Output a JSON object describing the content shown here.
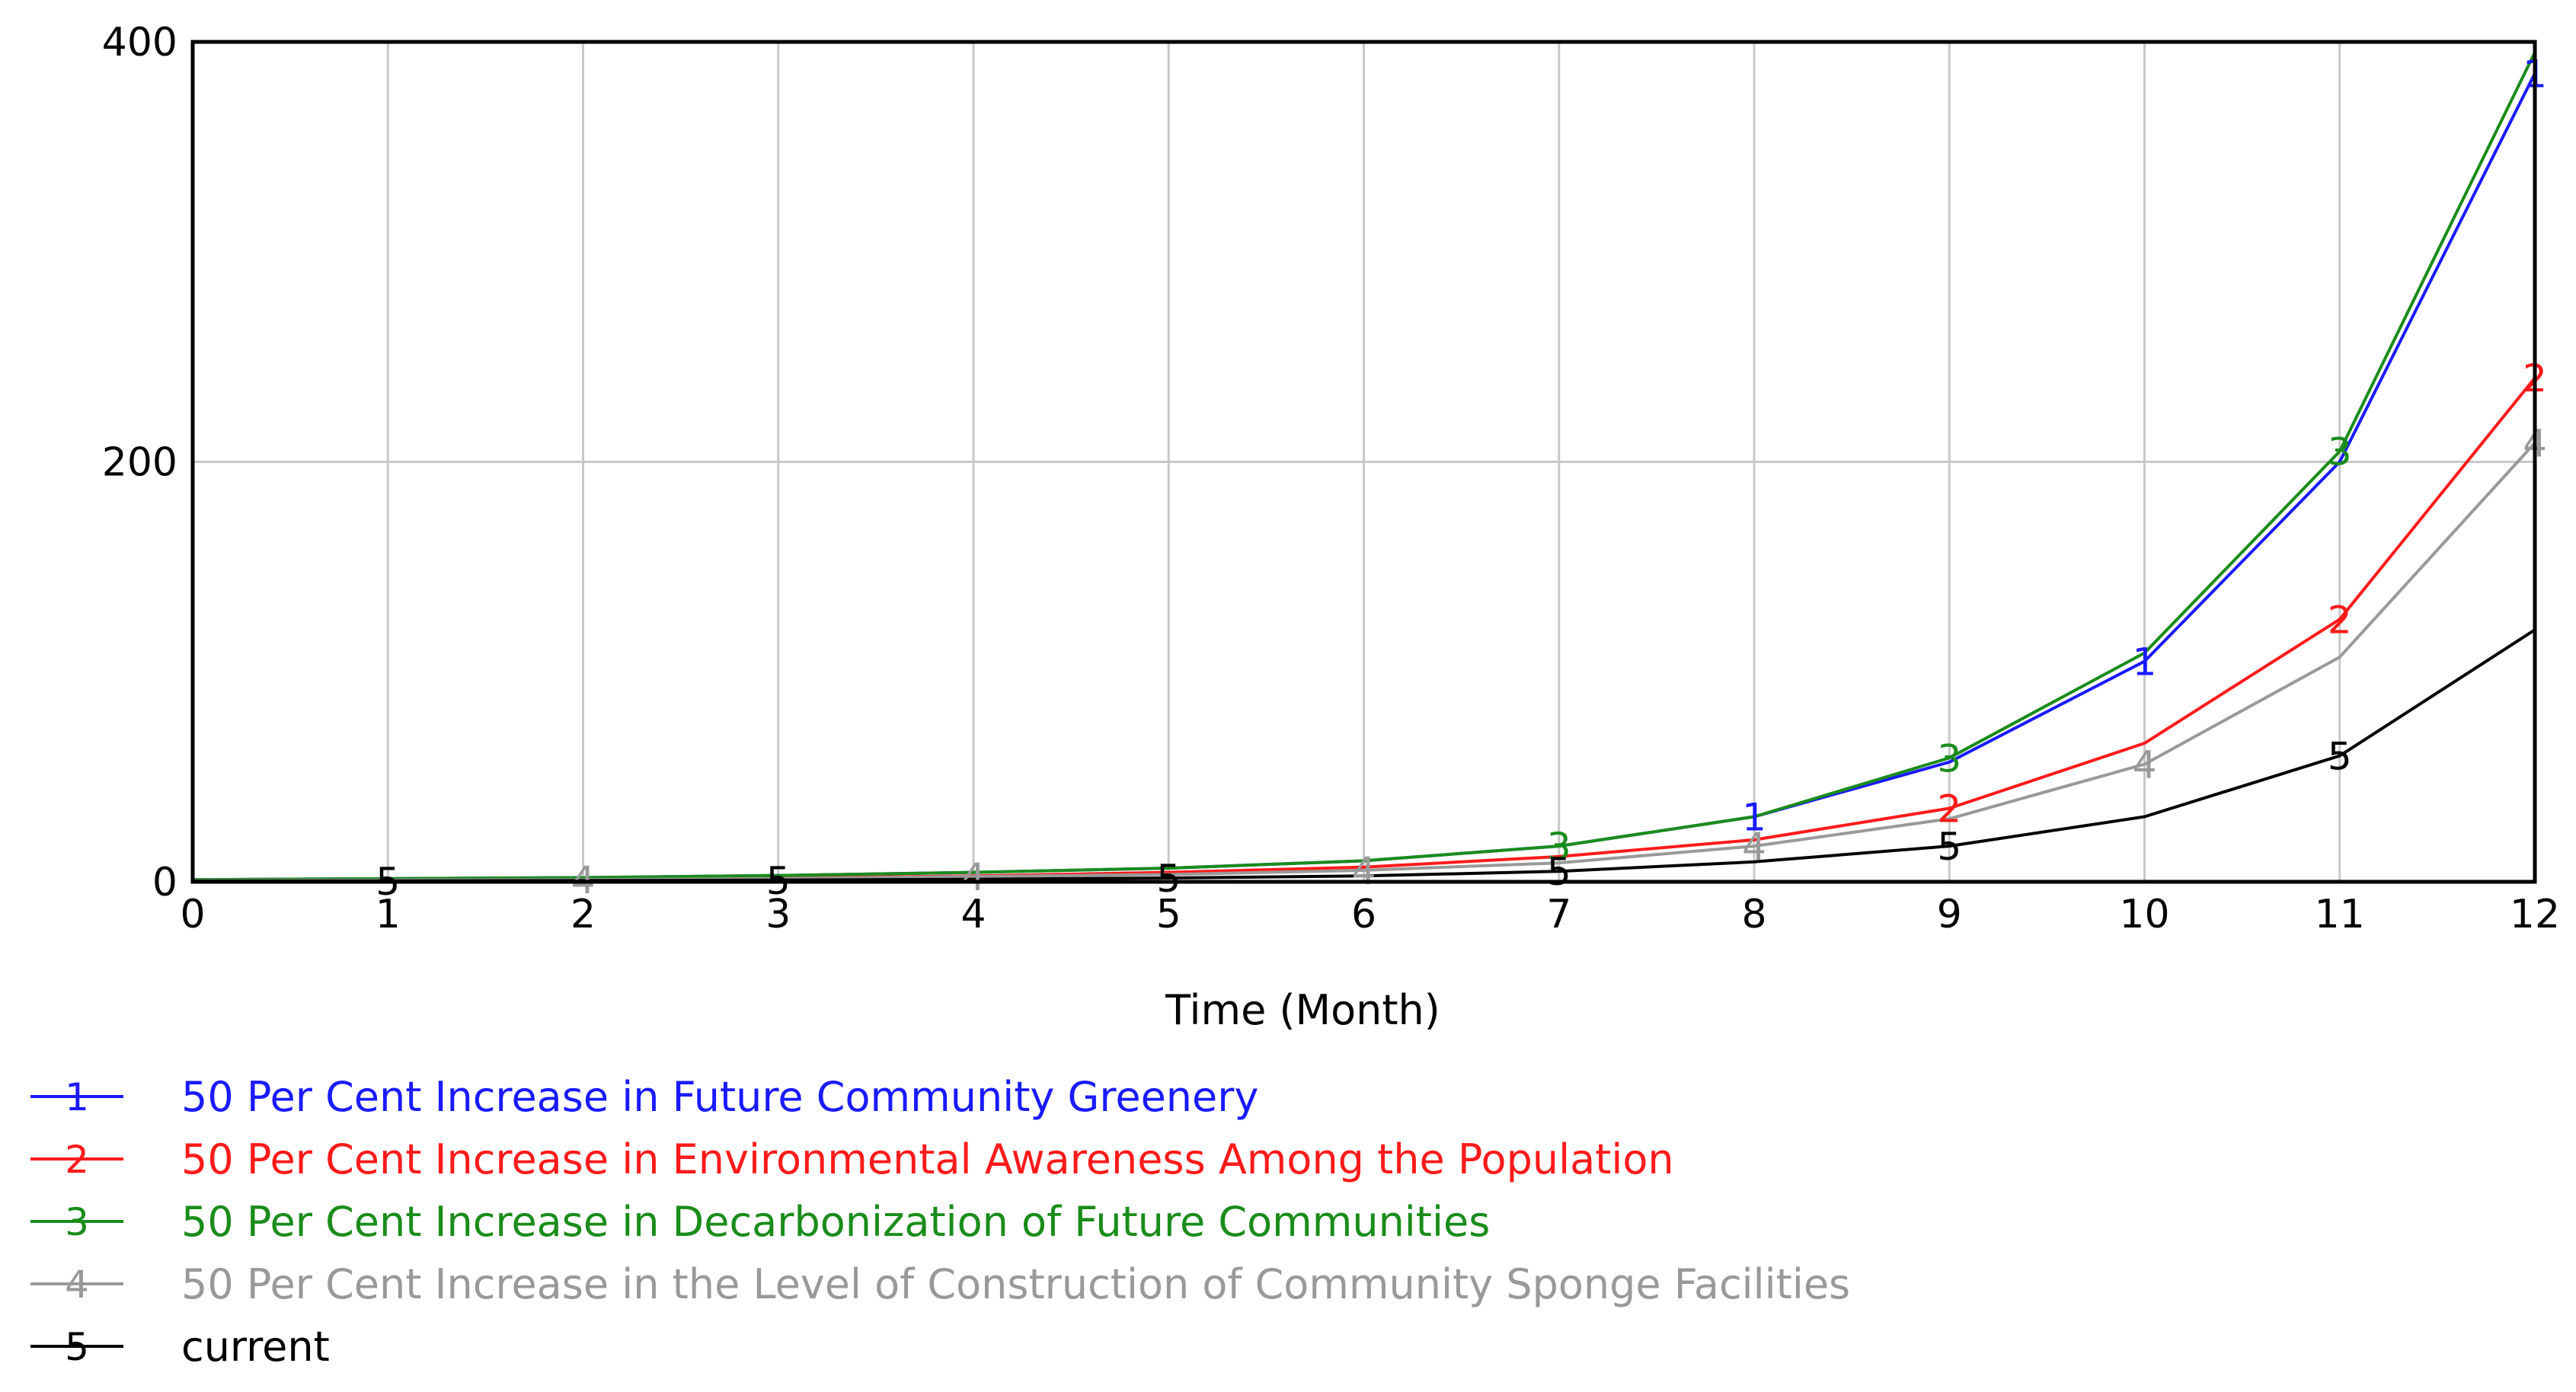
{
  "chart_data": {
    "type": "line",
    "title": "",
    "xlabel": "Time (Month)",
    "ylabel": "",
    "xlim": [
      0,
      12
    ],
    "ylim": [
      0,
      400
    ],
    "x": [
      0,
      1,
      2,
      3,
      4,
      5,
      6,
      7,
      8,
      9,
      10,
      11,
      12
    ],
    "x_ticks": [
      "0",
      "1",
      "2",
      "3",
      "4",
      "5",
      "6",
      "7",
      "8",
      "9",
      "10",
      "11",
      "12"
    ],
    "y_ticks": [
      "0",
      "200",
      "400"
    ],
    "y_tick_values": [
      0,
      200,
      400
    ],
    "grid": true,
    "legend_position": "bottom-left",
    "series": [
      {
        "id": "1",
        "name": "50 Per Cent Increase in Future Community Greenery",
        "color": "#1a1aff",
        "values": [
          1,
          1.5,
          2,
          3,
          4.5,
          6.5,
          10,
          17,
          31,
          57,
          105,
          200,
          385
        ],
        "marker_points": [
          8,
          10,
          12
        ]
      },
      {
        "id": "2",
        "name": "50 Per Cent Increase in Environmental Awareness Among the Population",
        "color": "#ff1a1a",
        "values": [
          0.5,
          0.8,
          1.2,
          1.8,
          2.8,
          4.5,
          7,
          12,
          20,
          35,
          66,
          125,
          240
        ],
        "marker_points": [
          9,
          11,
          12
        ]
      },
      {
        "id": "3",
        "name": "50 Per Cent Increase in Decarbonization of Future Communities",
        "color": "#1a8c1a",
        "values": [
          1,
          1.5,
          2,
          3,
          4.5,
          6.5,
          10,
          17,
          31,
          59,
          109,
          205,
          395
        ],
        "marker_points": [
          7,
          9,
          11
        ]
      },
      {
        "id": "4",
        "name": "50 Per Cent Increase in the Level of Construction of Community Sponge Facilities",
        "color": "#999999",
        "values": [
          0.5,
          0.8,
          1,
          1.5,
          2.5,
          3.5,
          5.5,
          9,
          17,
          30,
          56,
          107,
          209
        ],
        "marker_points": [
          2,
          4,
          6,
          8,
          10,
          12
        ]
      },
      {
        "id": "5",
        "name": "current",
        "color": "#000000",
        "values": [
          0.3,
          0.4,
          0.6,
          0.8,
          1.2,
          1.8,
          2.8,
          5,
          9.5,
          17,
          31,
          60,
          120
        ],
        "marker_points": [
          1,
          3,
          5,
          7,
          9,
          11
        ]
      }
    ]
  }
}
